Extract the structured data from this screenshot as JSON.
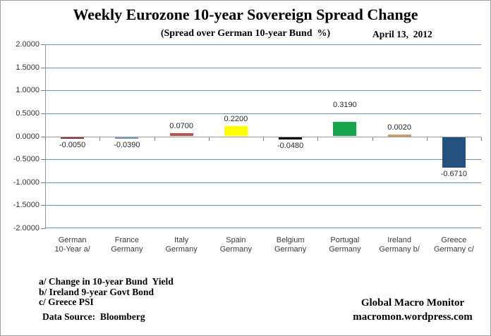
{
  "chart_data": {
    "type": "bar",
    "title": "Weekly Eurozone 10-year Sovereign Spread Change",
    "subtitle": "(Spread over German 10-year Bund  %)",
    "annotation_date": "April 13,  2012",
    "categories": [
      "German 10-Year a/",
      "France Germany",
      "Italy Germany",
      "Spain Germany",
      "Belgium Germany",
      "Portugal Germany",
      "Ireland Germany b/",
      "Greece Germany c/"
    ],
    "category_lines": [
      [
        "German",
        "10-Year a/"
      ],
      [
        "France",
        "Germany"
      ],
      [
        "Italy",
        "Germany"
      ],
      [
        "Spain",
        "Germany"
      ],
      [
        "Belgium",
        "Germany"
      ],
      [
        "Portugal",
        "Germany"
      ],
      [
        "Ireland",
        "Germany b/"
      ],
      [
        "Greece",
        "Germany c/"
      ]
    ],
    "values": [
      -0.005,
      -0.039,
      0.07,
      0.22,
      -0.048,
      0.319,
      0.002,
      -0.671
    ],
    "value_labels": [
      "-0.0050",
      "-0.0390",
      "0.0700",
      "0.2200",
      "-0.0480",
      "0.3190",
      "0.0020",
      "-0.6710"
    ],
    "bar_colors": [
      "#A02C2C",
      "#6F9BD1",
      "#C0504D",
      "#FFFF00",
      "#000000",
      "#17A64E",
      "#CE9C6B",
      "#24517E"
    ],
    "label_dy": [
      0,
      0,
      0,
      0,
      0,
      -14,
      0,
      0
    ],
    "ylim": [
      -2,
      2
    ],
    "y_ticks": [
      "2.0000",
      "1.5000",
      "1.0000",
      "0.5000",
      "0.0000",
      "-0.5000",
      "-1.0000",
      "-1.5000",
      "-2.0000"
    ],
    "grid": true,
    "legend": false,
    "gridline_color": "#6E8CB4",
    "axis_color": "#999999",
    "tick_color": "#808080"
  },
  "footnotes": {
    "a": "a/ Change in 10-year Bund  Yield",
    "b": "b/ Ireland 9-year Govt Bond",
    "c": "c/ Greece PSI",
    "source": "Data Source:  Bloomberg"
  },
  "credits": {
    "line1": "Global Macro Monitor",
    "line2": "macromon.wordpress.com"
  }
}
